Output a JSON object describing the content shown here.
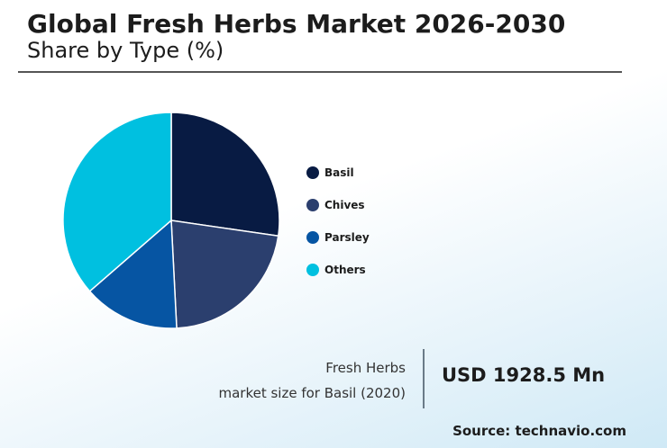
{
  "chart_data": {
    "type": "pie",
    "title": "Global Fresh Herbs Market 2026-2030",
    "subtitle": "Share by Type (%)",
    "categories": [
      "Basil",
      "Chives",
      "Parsley",
      "Others"
    ],
    "values": [
      27.3,
      21.9,
      14.4,
      36.4
    ],
    "colors": [
      "#081b43",
      "#2b3f6e",
      "#0655a3",
      "#00c0e0"
    ],
    "legend_position": "right"
  },
  "metric": {
    "label_line1": "Fresh Herbs",
    "label_line2": "market size for Basil (2020)",
    "value": "USD 1928.5 Mn"
  },
  "source": "Source: technavio.com"
}
